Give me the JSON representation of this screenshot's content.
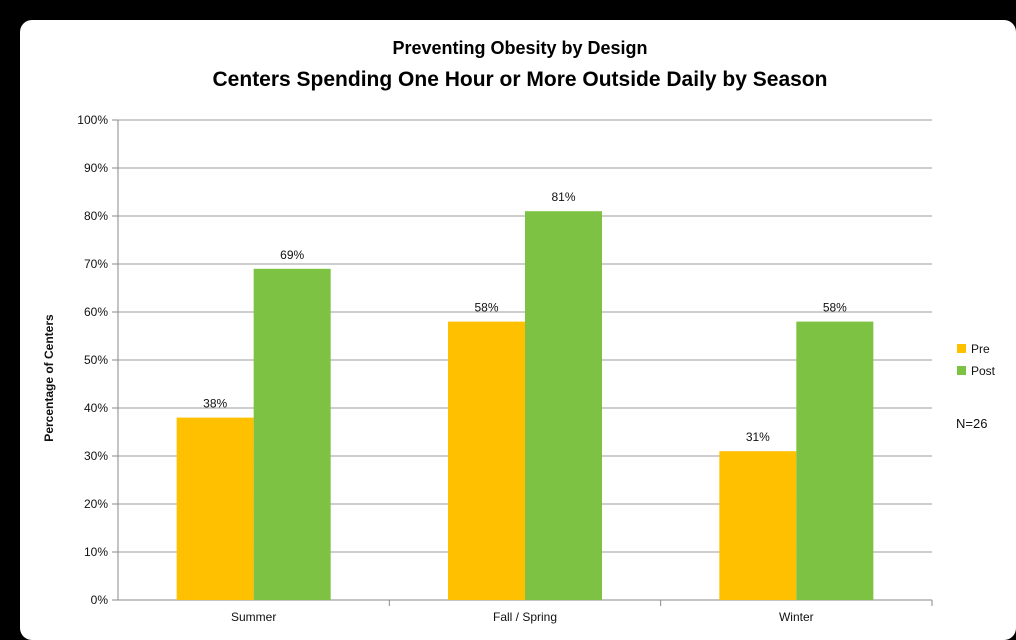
{
  "chart_data": {
    "type": "bar",
    "title": "Preventing Obesity by Design",
    "subtitle": "Centers Spending One Hour or More Outside Daily by Season",
    "xlabel": "",
    "ylabel": "Percentage of Centers",
    "ylim": [
      0,
      100
    ],
    "y_ticks": [
      "0%",
      "10%",
      "20%",
      "30%",
      "40%",
      "50%",
      "60%",
      "70%",
      "80%",
      "90%",
      "100%"
    ],
    "categories": [
      "Summer",
      "Fall / Spring",
      "Winter"
    ],
    "series": [
      {
        "name": "Pre",
        "color": "#FFC000",
        "values": [
          38,
          58,
          31
        ],
        "labels": [
          "38%",
          "58%",
          "31%"
        ]
      },
      {
        "name": "Post",
        "color": "#7DC242",
        "values": [
          69,
          81,
          58
        ],
        "labels": [
          "69%",
          "81%",
          "58%"
        ]
      }
    ],
    "grid": true,
    "legend_position": "right",
    "annotation": "N=26"
  }
}
